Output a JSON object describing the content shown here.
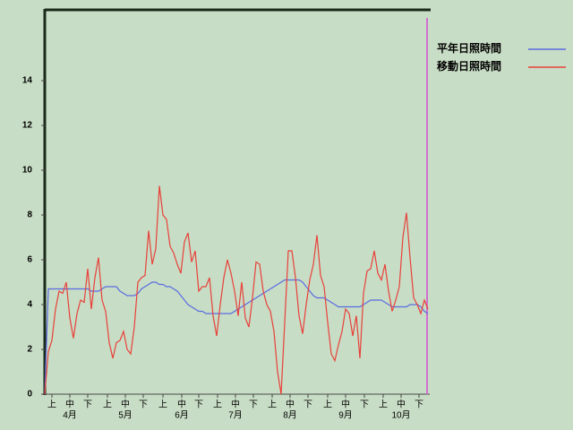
{
  "chart_data": {
    "type": "line",
    "series": [
      {
        "name": "平年日照時間",
        "color": "#5a6be0",
        "values": [
          0,
          4.7,
          4.7,
          4.7,
          4.7,
          4.7,
          4.7,
          4.7,
          4.7,
          4.7,
          4.7,
          4.7,
          4.7,
          4.6,
          4.6,
          4.6,
          4.7,
          4.8,
          4.8,
          4.8,
          4.8,
          4.6,
          4.5,
          4.4,
          4.4,
          4.4,
          4.5,
          4.7,
          4.8,
          4.9,
          5.0,
          5.0,
          4.9,
          4.9,
          4.8,
          4.8,
          4.7,
          4.6,
          4.4,
          4.2,
          4.0,
          3.9,
          3.8,
          3.7,
          3.7,
          3.6,
          3.6,
          3.6,
          3.6,
          3.6,
          3.6,
          3.6,
          3.6,
          3.7,
          3.8,
          3.9,
          4.0,
          4.1,
          4.2,
          4.3,
          4.4,
          4.5,
          4.6,
          4.7,
          4.8,
          4.9,
          5.0,
          5.1,
          5.1,
          5.1,
          5.1,
          5.1,
          5.0,
          4.8,
          4.6,
          4.4,
          4.3,
          4.3,
          4.3,
          4.2,
          4.1,
          4.0,
          3.9,
          3.9,
          3.9,
          3.9,
          3.9,
          3.9,
          3.9,
          4.0,
          4.1,
          4.2,
          4.2,
          4.2,
          4.2,
          4.1,
          4.0,
          3.9,
          3.9,
          3.9,
          3.9,
          3.9,
          4.0,
          4.0,
          4.0,
          3.9,
          3.7,
          3.6
        ]
      },
      {
        "name": "移動日照時間",
        "color": "#e8403a",
        "values": [
          0,
          1.9,
          2.4,
          3.8,
          4.6,
          4.5,
          5.0,
          3.4,
          2.5,
          3.6,
          4.2,
          4.1,
          5.6,
          3.8,
          5.2,
          6.1,
          4.2,
          3.7,
          2.3,
          1.6,
          2.3,
          2.4,
          2.8,
          2.0,
          1.8,
          3.0,
          5.0,
          5.2,
          5.3,
          7.3,
          5.8,
          6.5,
          9.3,
          8.0,
          7.8,
          6.6,
          6.3,
          5.8,
          5.4,
          6.8,
          7.2,
          5.9,
          6.4,
          4.6,
          4.8,
          4.8,
          5.2,
          3.5,
          2.6,
          4.0,
          5.2,
          6.0,
          5.4,
          4.6,
          3.5,
          5.0,
          3.4,
          3.0,
          4.3,
          5.9,
          5.8,
          4.6,
          4.0,
          3.7,
          2.8,
          1.0,
          0.0,
          3.2,
          6.4,
          6.4,
          5.2,
          3.5,
          2.7,
          4.0,
          5.1,
          5.8,
          7.1,
          5.3,
          4.8,
          3.2,
          1.8,
          1.5,
          2.2,
          2.8,
          3.8,
          3.6,
          2.6,
          3.5,
          1.6,
          4.5,
          5.5,
          5.6,
          6.4,
          5.4,
          5.1,
          5.8,
          4.6,
          3.7,
          4.2,
          4.8,
          7.0,
          8.1,
          6.1,
          4.3,
          4.0,
          3.6,
          4.2,
          3.8
        ]
      }
    ],
    "xlim": [
      0,
      107
    ],
    "xticks": [
      {
        "value": 2,
        "label": "上"
      },
      {
        "value": 7,
        "label": "中"
      },
      {
        "value": 12,
        "label": "下"
      },
      {
        "value": 17.5,
        "label": "上"
      },
      {
        "value": 22.5,
        "label": "中"
      },
      {
        "value": 27.5,
        "label": "下"
      },
      {
        "value": 33,
        "label": "上"
      },
      {
        "value": 38.25,
        "label": "中"
      },
      {
        "value": 43,
        "label": "下"
      },
      {
        "value": 48.25,
        "label": "上"
      },
      {
        "value": 53.25,
        "label": "中"
      },
      {
        "value": 58.25,
        "label": "下"
      },
      {
        "value": 63.5,
        "label": "上"
      },
      {
        "value": 68.5,
        "label": "中"
      },
      {
        "value": 73.5,
        "label": "下"
      },
      {
        "value": 79,
        "label": "上"
      },
      {
        "value": 84,
        "label": "中"
      },
      {
        "value": 89.25,
        "label": "下"
      },
      {
        "value": 94.5,
        "label": "上"
      },
      {
        "value": 99.5,
        "label": "中"
      },
      {
        "value": 104.5,
        "label": "下"
      }
    ],
    "month_ticks": [
      {
        "value": 7,
        "label": "4月"
      },
      {
        "value": 22.5,
        "label": "5月"
      },
      {
        "value": 38.25,
        "label": "6月"
      },
      {
        "value": 53.25,
        "label": "7月"
      },
      {
        "value": 68.5,
        "label": "8月"
      },
      {
        "value": 84,
        "label": "9月"
      },
      {
        "value": 99.5,
        "label": "10月"
      }
    ],
    "ylim": [
      0,
      17.2
    ],
    "yticks": [
      0,
      2,
      4,
      6,
      8,
      10,
      12,
      14
    ]
  }
}
